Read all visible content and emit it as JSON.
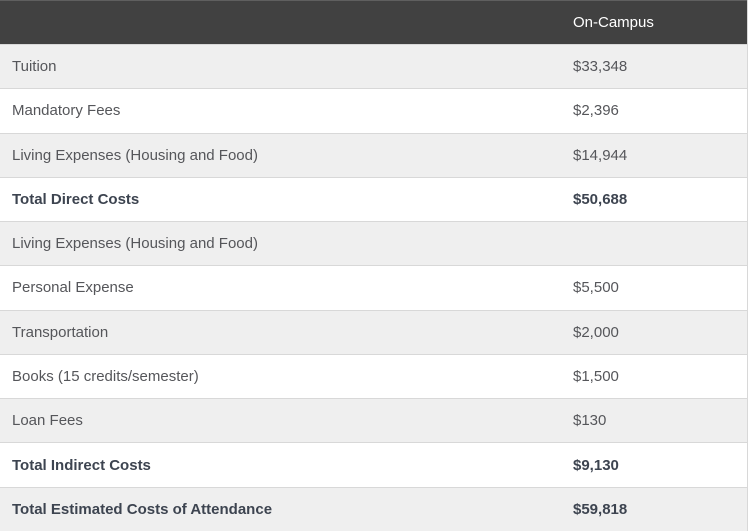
{
  "colors": {
    "header_bg": "#414141",
    "header_text": "#ffffff",
    "row_bg": "#ffffff",
    "row_alt_bg": "#efefef",
    "border": "#d8d8d8",
    "text": "#55565a",
    "bold_text": "#3d4450"
  },
  "header": {
    "label_column": "",
    "value_column": "On-Campus"
  },
  "rows": [
    {
      "label": "Tuition",
      "value": "$33,348",
      "bold": false
    },
    {
      "label": "Mandatory Fees",
      "value": "$2,396",
      "bold": false
    },
    {
      "label": "Living Expenses (Housing and Food)",
      "value": "$14,944",
      "bold": false
    },
    {
      "label": "Total Direct Costs",
      "value": "$50,688",
      "bold": true
    },
    {
      "label": "Living Expenses (Housing and Food)",
      "value": "",
      "bold": false
    },
    {
      "label": "Personal Expense",
      "value": "$5,500",
      "bold": false
    },
    {
      "label": "Transportation",
      "value": "$2,000",
      "bold": false
    },
    {
      "label": "Books (15 credits/semester)",
      "value": "$1,500",
      "bold": false
    },
    {
      "label": "Loan Fees",
      "value": "$130",
      "bold": false
    },
    {
      "label": "Total Indirect Costs",
      "value": "$9,130",
      "bold": true
    },
    {
      "label": "Total Estimated Costs of Attendance",
      "value": "$59,818",
      "bold": true
    }
  ],
  "chart_data": {
    "type": "table",
    "columns": [
      "",
      "On-Campus"
    ],
    "rows": [
      [
        "Tuition",
        "$33,348"
      ],
      [
        "Mandatory Fees",
        "$2,396"
      ],
      [
        "Living Expenses (Housing and Food)",
        "$14,944"
      ],
      [
        "Total Direct Costs",
        "$50,688"
      ],
      [
        "Living Expenses (Housing and Food)",
        ""
      ],
      [
        "Personal Expense",
        "$5,500"
      ],
      [
        "Transportation",
        "$2,000"
      ],
      [
        "Books (15 credits/semester)",
        "$1,500"
      ],
      [
        "Loan Fees",
        "$130"
      ],
      [
        "Total Indirect Costs",
        "$9,130"
      ],
      [
        "Total Estimated Costs of Attendance",
        "$59,818"
      ]
    ]
  }
}
